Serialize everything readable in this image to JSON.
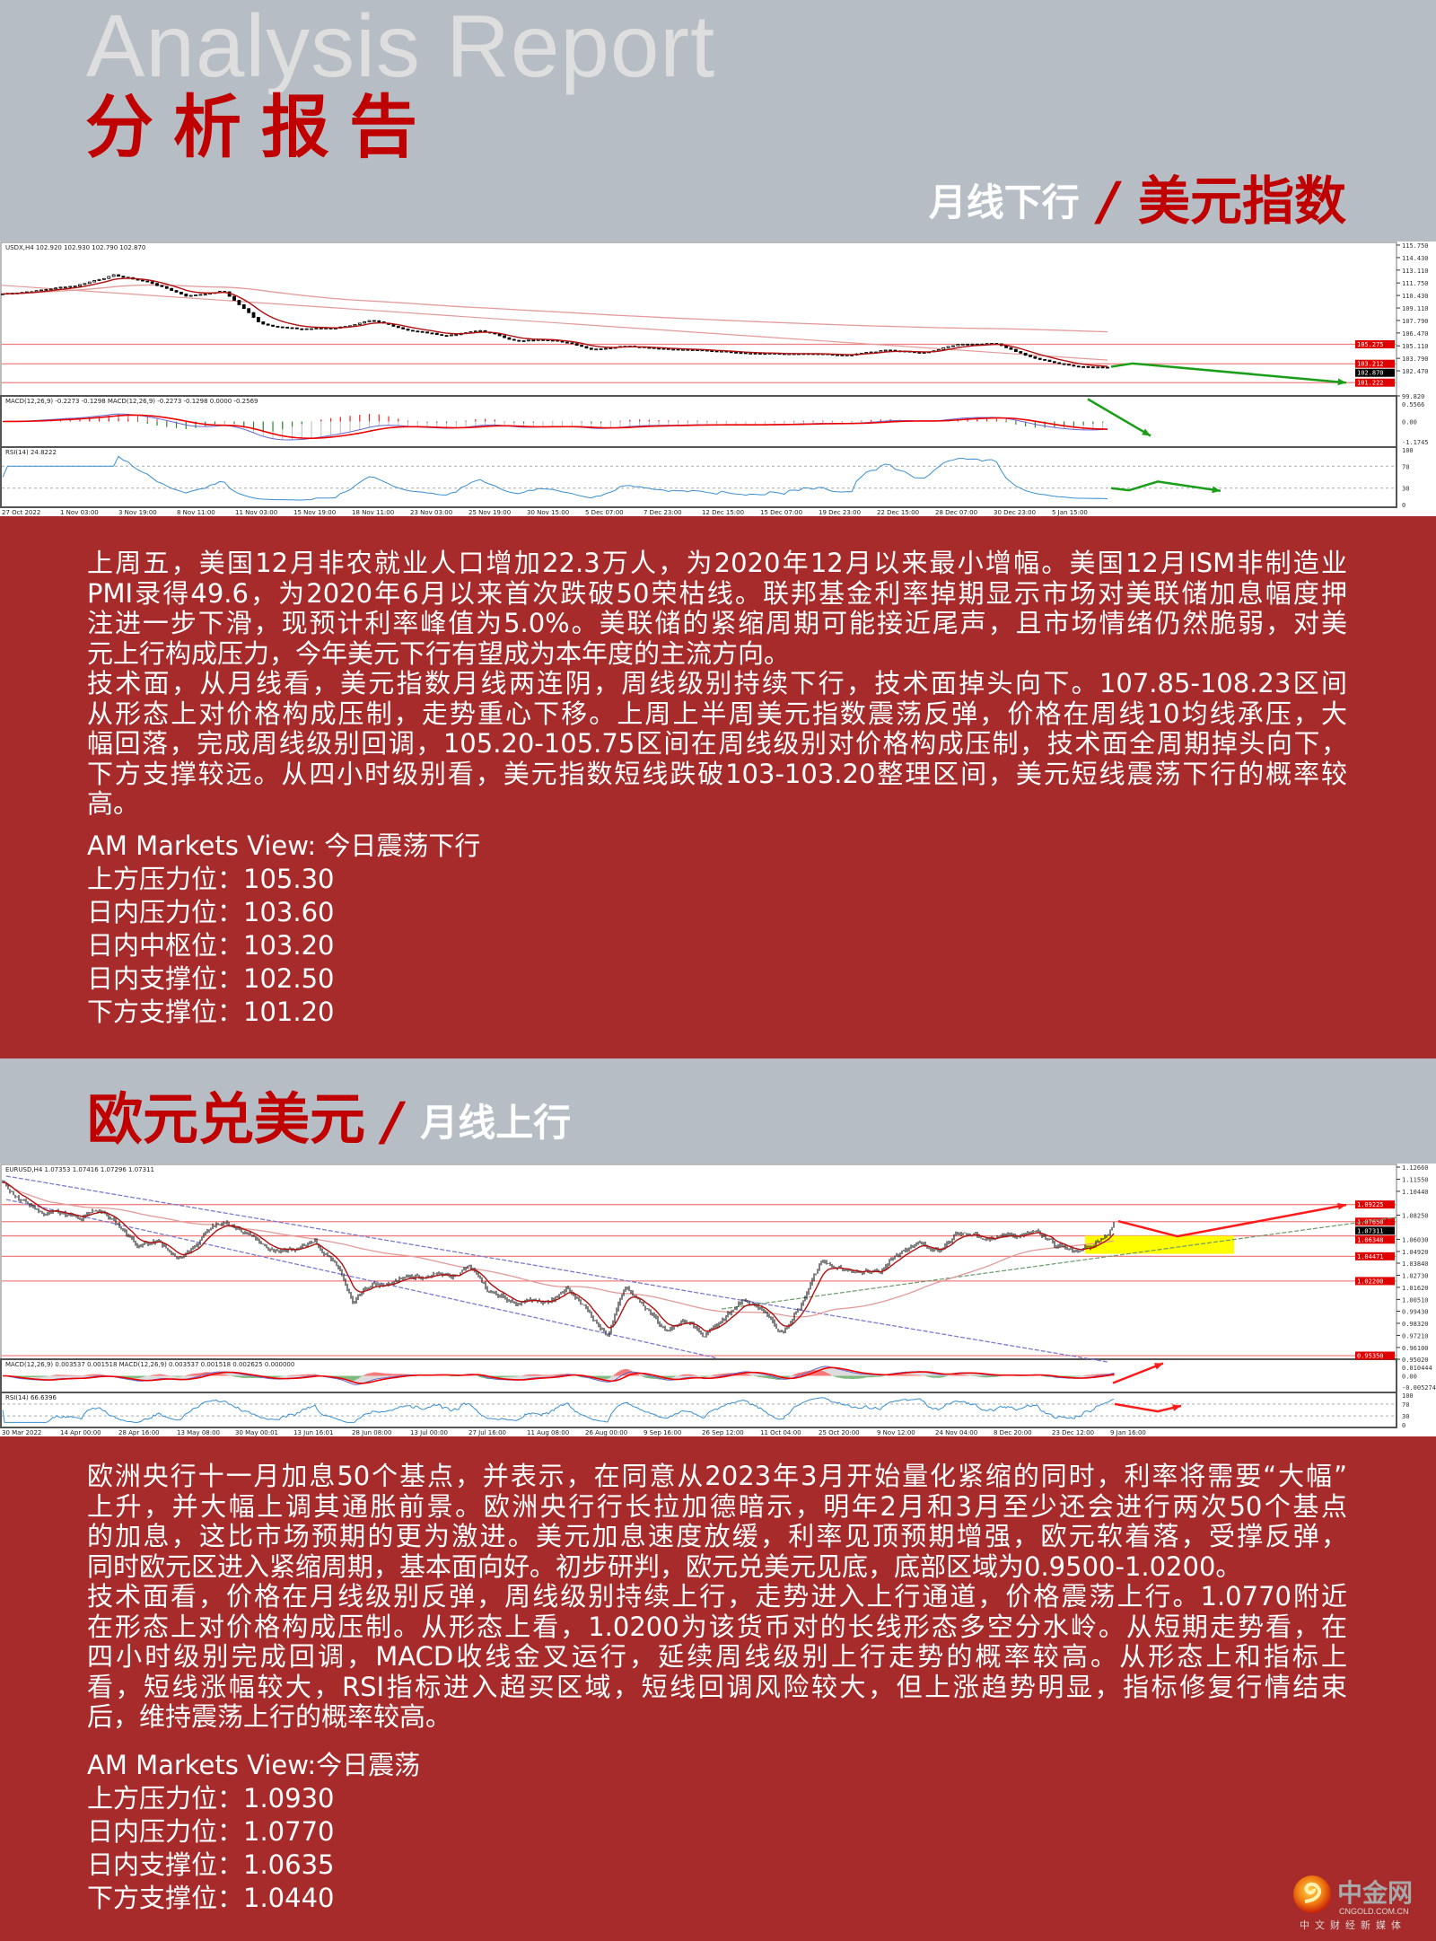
{
  "header": {
    "title_en": "Analysis Report",
    "title_cn": "分析报告",
    "usd_trend": "月线下行",
    "slash": "/",
    "usd_name": "美元指数"
  },
  "usd_chart": {
    "symbol_info": "USDX,H4  102.920 102.930 102.790 102.870",
    "macd_info": "MACD(12,26,9) -0.2273 -0.1298  MACD(12,26,9) -0.2273 -0.1298 0.0000 -0.2569",
    "rsi_info": "RSI(14) 24.8222",
    "price_range": [
      99.82,
      115.75
    ],
    "price_ticks": [
      "115.750",
      "114.430",
      "113.110",
      "111.750",
      "110.430",
      "109.110",
      "107.790",
      "106.470",
      "105.110",
      "103.790",
      "102.470",
      "99.820"
    ],
    "macd_ticks": [
      "0.5566",
      "0.00",
      "-1.1745"
    ],
    "rsi_ticks": [
      "100",
      "70",
      "30",
      "0"
    ],
    "levels": [
      {
        "value": 105.275,
        "label": "105.275",
        "color": "#e00000"
      },
      {
        "value": 103.212,
        "label": "103.212",
        "color": "#e00000"
      },
      {
        "value": 102.87,
        "label": "102.870",
        "color": "#000000"
      },
      {
        "value": 101.222,
        "label": "101.222",
        "color": "#e00000"
      }
    ],
    "x_labels": [
      "27 Oct 2022",
      "1 Nov 03:00",
      "3 Nov 19:00",
      "8 Nov 11:00",
      "11 Nov 03:00",
      "15 Nov 19:00",
      "18 Nov 11:00",
      "23 Nov 03:00",
      "25 Nov 19:00",
      "30 Nov 15:00",
      "5 Dec 07:00",
      "7 Dec 23:00",
      "12 Dec 15:00",
      "15 Dec 07:00",
      "19 Dec 23:00",
      "22 Dec 15:00",
      "28 Dec 07:00",
      "30 Dec 23:00",
      "5 Jan 15:00"
    ],
    "price_path": [
      110.6,
      111.0,
      111.5,
      112.6,
      111.8,
      110.4,
      110.9,
      107.5,
      106.9,
      107.0,
      107.7,
      106.8,
      106.2,
      106.7,
      105.6,
      105.8,
      104.8,
      105.2,
      104.9,
      104.6,
      104.5,
      104.3,
      104.2,
      104.0,
      104.6,
      104.3,
      105.3,
      105.4,
      103.8,
      103.0,
      102.9
    ],
    "forecast_color": "#1a9e1a"
  },
  "usd_text": {
    "paragraphs": [
      [
        "上周五，美国12月非农就业人口增加22.3万人，为2020年12月以来最小增幅。美国12月ISM非制造业",
        "PMI录得49.6，为2020年6月以来首次跌破50荣枯线。联邦基金利率掉期显示市场对美联储加息幅度押",
        "注进一步下滑，现预计利率峰值为5.0%。美联储的紧缩周期可能接近尾声，且市场情绪仍然脆弱，对美",
        "元上行构成压力，今年美元下行有望成为本年度的主流方向。"
      ],
      [
        "技术面，从月线看，美元指数月线两连阴，周线级别持续下行，技术面掉头向下。107.85-108.23区间",
        "从形态上对价格构成压制，走势重心下移。上周上半周美元指数震荡反弹，价格在周线10均线承压，大",
        "幅回落，完成周线级别回调，105.20-105.75区间在周线级别对价格构成压制，技术面全周期掉头向下，",
        "下方支撑较远。从四小时级别看，美元指数短线跌破103-103.20整理区间，美元短线震荡下行的概率较",
        "高。"
      ]
    ],
    "view": "AM Markets View: 今日震荡下行",
    "levels": [
      "上方压力位：105.30",
      "日内压力位：103.60",
      "日内中枢位：103.20",
      "日内支撑位：102.50",
      "下方支撑位：101.20"
    ]
  },
  "eur_header": {
    "name": "欧元兑美元",
    "slash": "/",
    "trend": "月线上行"
  },
  "eur_chart": {
    "symbol_info": "EURUSD,H4  1.07353 1.07416 1.07296 1.07311",
    "macd_info": "MACD(12,26,9) 0.003537 0.001518  MACD(12,26,9) 0.003537 0.001518 0.002625 0.000000",
    "rsi_info": "RSI(14) 66.6396",
    "price_range": [
      0.9502,
      1.1266
    ],
    "price_ticks": [
      "1.12660",
      "1.11550",
      "1.10440",
      "1.08250",
      "1.06030",
      "1.04920",
      "1.03840",
      "1.02730",
      "1.01620",
      "1.00510",
      "0.99430",
      "0.98320",
      "0.97210",
      "0.96100",
      "0.95020"
    ],
    "macd_ticks": [
      "0.010444",
      "0.00",
      "-0.005274"
    ],
    "rsi_ticks": [
      "100",
      "70",
      "30",
      "0"
    ],
    "levels": [
      {
        "value": 1.09225,
        "label": "1.09225",
        "color": "#e00000"
      },
      {
        "value": 1.0765,
        "label": "1.07650",
        "color": "#e00000"
      },
      {
        "value": 1.07311,
        "label": "1.07311",
        "color": "#000000"
      },
      {
        "value": 1.06348,
        "label": "1.06348",
        "color": "#e00000"
      },
      {
        "value": 1.04471,
        "label": "1.04471",
        "color": "#e00000"
      },
      {
        "value": 1.022,
        "label": "1.02200",
        "color": "#e00000"
      },
      {
        "value": 0.9535,
        "label": "0.95350",
        "color": "#e00000"
      }
    ],
    "x_labels": [
      "30 Mar 2022",
      "14 Apr 00:00",
      "28 Apr 16:00",
      "13 May 08:00",
      "30 May 00:01",
      "13 Jun 16:01",
      "28 Jun 08:00",
      "13 Jul 00:00",
      "27 Jul 16:00",
      "11 Aug 08:00",
      "26 Aug 00:00",
      "9 Sep 16:00",
      "26 Sep 12:00",
      "11 Oct 04:00",
      "25 Oct 20:00",
      "9 Nov 12:00",
      "24 Nov 04:00",
      "8 Dec 20:00",
      "23 Dec 12:00",
      "9 Jan 16:00"
    ],
    "price_path": [
      1.112,
      1.095,
      1.085,
      1.086,
      1.077,
      1.088,
      1.072,
      1.055,
      1.058,
      1.04,
      1.058,
      1.075,
      1.073,
      1.06,
      1.047,
      1.053,
      1.058,
      1.041,
      1.002,
      1.02,
      1.022,
      1.025,
      1.03,
      1.024,
      1.035,
      1.013,
      1.004,
      1.006,
      1.003,
      1.015,
      0.995,
      0.972,
      1.017,
      0.998,
      0.975,
      0.985,
      0.97,
      0.985,
      1.005,
      0.995,
      0.975,
      1.0,
      1.04,
      1.035,
      1.03,
      1.032,
      1.045,
      1.055,
      1.05,
      1.065,
      1.063,
      1.06,
      1.064,
      1.068,
      1.055,
      1.048,
      1.055,
      1.073
    ],
    "forecast_color": "#ff1a1a",
    "zone_color": "#ffff00"
  },
  "eur_text": {
    "paragraphs": [
      [
        "欧洲央行十一月加息50个基点，并表示，在同意从2023年3月开始量化紧缩的同时，利率将需要“大幅”",
        "上升，并大幅上调其通胀前景。欧洲央行行长拉加德暗示，明年2月和3月至少还会进行两次50个基点",
        "的加息，这比市场预期的更为激进。美元加息速度放缓，利率见顶预期增强，欧元软着落，受撑反弹，",
        "同时欧元区进入紧缩周期，基本面向好。初步研判，欧元兑美元见底，底部区域为0.9500-1.0200。"
      ],
      [
        "技术面看，价格在月线级别反弹，周线级别持续上行，走势进入上行通道，价格震荡上行。1.0770附近",
        "在形态上对价格构成压制。从形态上看，1.0200为该货币对的长线形态多空分水岭。从短期走势看，在",
        "四小时级别完成回调，MACD收线金叉运行，延续周线级别上行走势的概率较高。从形态上和指标上",
        "看，短线涨幅较大，RSI指标进入超买区域，短线回调风险较大，但上涨趋势明显，指标修复行情结束",
        "后，维持震荡上行的概率较高。"
      ]
    ],
    "view": "AM Markets View:今日震荡",
    "levels": [
      "上方压力位：1.0930",
      "日内压力位：1.0770",
      "日内支撑位：1.0635",
      "下方支撑位：1.0440"
    ]
  },
  "logo": {
    "name": "中金网",
    "domain": "CNGOLD.COM.CN",
    "tagline": "中文财经新媒体"
  },
  "colors": {
    "brand_red": "#c00000",
    "section_bg": "#a72b2b",
    "header_gray": "#b6bdc5"
  }
}
